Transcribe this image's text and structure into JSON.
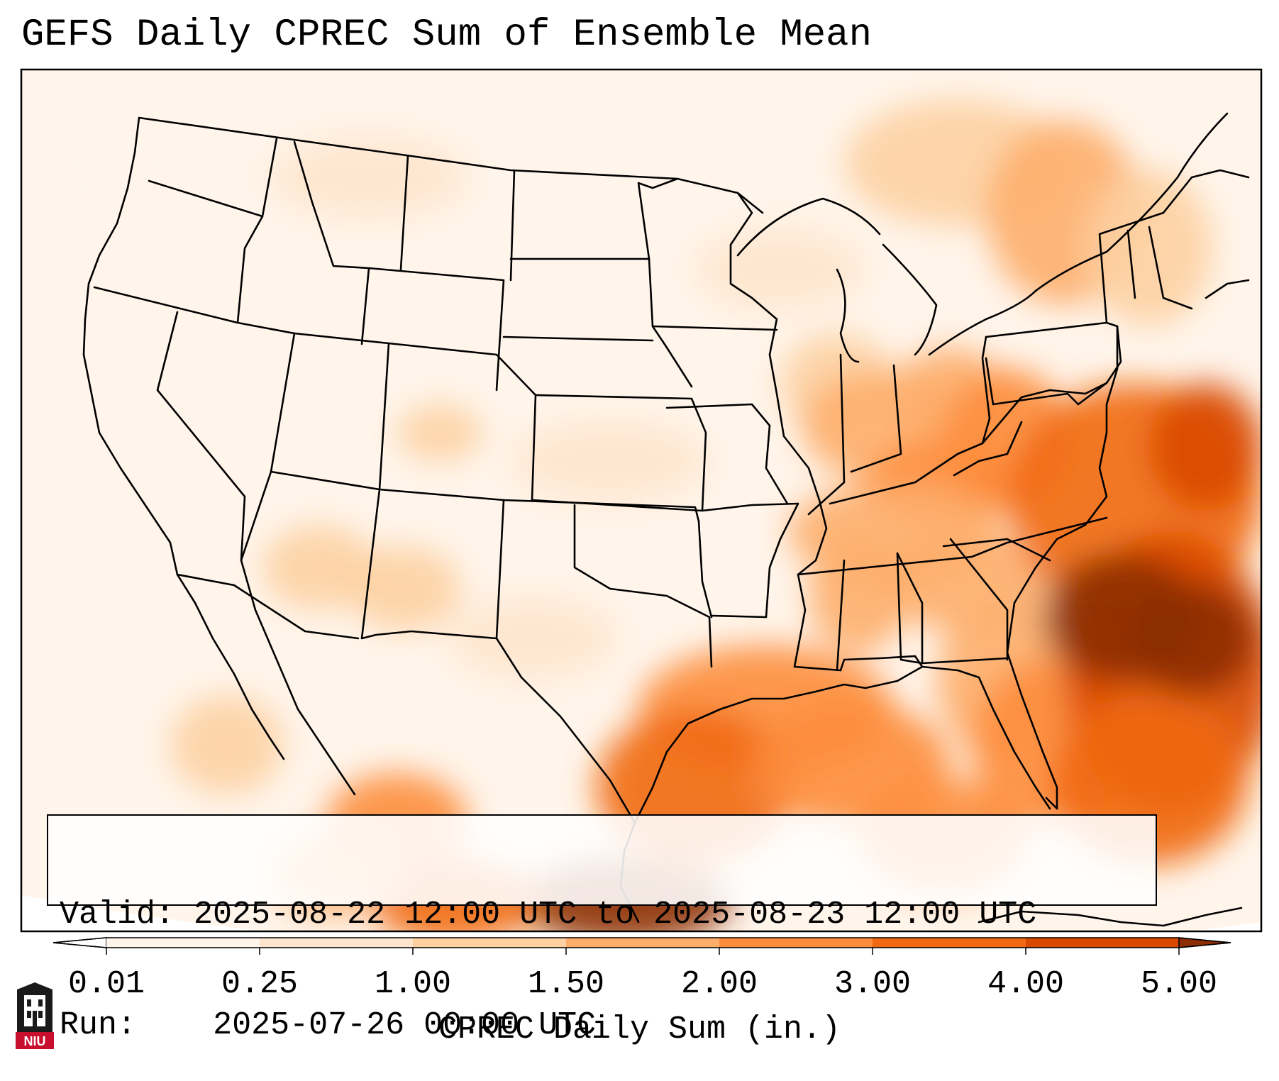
{
  "title": "GEFS Daily CPREC Sum of Ensemble Mean",
  "info": {
    "valid_label": "Valid:",
    "valid_value": "2025-08-22 12:00 UTC to 2025-08-23 12:00 UTC",
    "run_label": "Run:",
    "run_value": "2025-07-26 00:00 UTC"
  },
  "colorbar": {
    "title": "CPREC Daily Sum (in.)",
    "ticks": [
      "0.01",
      "0.25",
      "1.00",
      "1.50",
      "2.00",
      "3.00",
      "4.00",
      "5.00"
    ],
    "colors": [
      "#fff5eb",
      "#fee6ce",
      "#fdd0a2",
      "#fdae6b",
      "#fd8d3c",
      "#f16913",
      "#d94801",
      "#8c2d04"
    ],
    "extend": "both"
  },
  "logo": {
    "text": "NIU",
    "color": "#c8102e"
  },
  "map": {
    "region": "Continental United States",
    "projection": "Lambert Conformal",
    "heaviest_precip_region": "Western Atlantic off the Southeast coast"
  }
}
